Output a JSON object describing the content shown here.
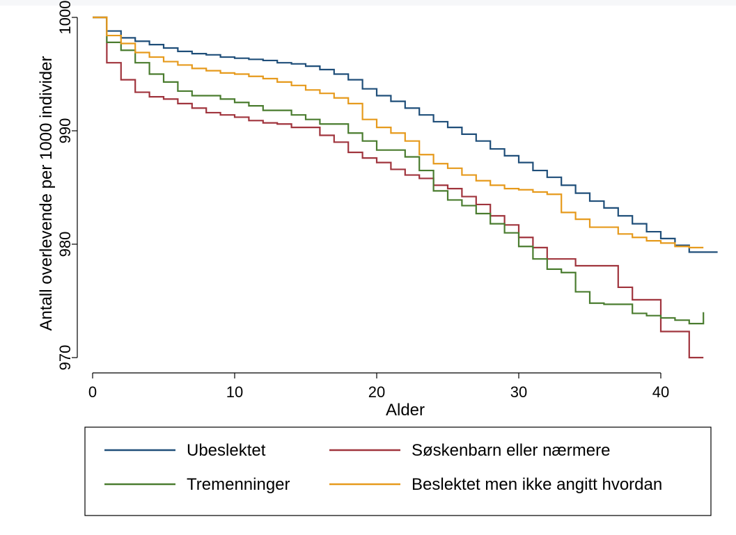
{
  "chart_data": {
    "type": "line",
    "title": "",
    "xlabel": "Alder",
    "ylabel": "Antall overlevende per 1000 individer",
    "xlim": [
      0,
      44
    ],
    "ylim": [
      970,
      1000
    ],
    "x_ticks": [
      0,
      10,
      20,
      30,
      40
    ],
    "y_ticks": [
      970,
      980,
      990,
      1000
    ],
    "grid": false,
    "legend_position": "bottom",
    "series": [
      {
        "name": "Ubeslektet",
        "color": "#1f4e79",
        "x": [
          0,
          1,
          2,
          3,
          4,
          5,
          6,
          7,
          8,
          9,
          10,
          11,
          12,
          13,
          14,
          15,
          16,
          17,
          18,
          19,
          20,
          21,
          22,
          23,
          24,
          25,
          26,
          27,
          28,
          29,
          30,
          31,
          32,
          33,
          34,
          35,
          36,
          37,
          38,
          39,
          40,
          41,
          42,
          43,
          44
        ],
        "values": [
          1000,
          998.8,
          998.2,
          997.9,
          997.6,
          997.3,
          997.0,
          996.8,
          996.7,
          996.5,
          996.4,
          996.3,
          996.2,
          996.0,
          995.9,
          995.7,
          995.4,
          995.0,
          994.5,
          993.7,
          993.1,
          992.6,
          992.0,
          991.4,
          990.8,
          990.3,
          989.7,
          989.1,
          988.4,
          987.8,
          987.2,
          986.5,
          985.9,
          985.2,
          984.5,
          983.8,
          983.2,
          982.5,
          981.8,
          981.1,
          980.5,
          979.9,
          979.3,
          979.3,
          979.3
        ]
      },
      {
        "name": "Søskenbarn eller nærmere",
        "color": "#a0343d",
        "x": [
          0,
          1,
          2,
          3,
          4,
          5,
          6,
          7,
          8,
          9,
          10,
          11,
          12,
          13,
          14,
          15,
          16,
          17,
          18,
          19,
          20,
          21,
          22,
          23,
          24,
          25,
          26,
          27,
          28,
          29,
          30,
          31,
          32,
          33,
          34,
          35,
          36,
          37,
          38,
          39,
          40,
          41,
          42,
          43
        ],
        "values": [
          1000,
          996.0,
          994.5,
          993.4,
          993.0,
          992.8,
          992.4,
          992.0,
          991.6,
          991.4,
          991.2,
          990.9,
          990.7,
          990.6,
          990.3,
          990.3,
          989.6,
          989.0,
          988.1,
          987.6,
          987.2,
          986.6,
          986.1,
          985.8,
          985.2,
          984.9,
          984.2,
          983.5,
          982.5,
          981.7,
          980.6,
          979.7,
          978.7,
          978.7,
          978.1,
          978.1,
          978.1,
          976.2,
          975.1,
          975.1,
          972.3,
          972.3,
          970.0,
          970.0
        ]
      },
      {
        "name": "Tremenninger",
        "color": "#4a7c2f",
        "x": [
          0,
          1,
          2,
          3,
          4,
          5,
          6,
          7,
          8,
          9,
          10,
          11,
          12,
          13,
          14,
          15,
          16,
          17,
          18,
          19,
          20,
          21,
          22,
          23,
          24,
          25,
          26,
          27,
          28,
          29,
          30,
          31,
          32,
          33,
          34,
          35,
          36,
          37,
          38,
          39,
          40,
          41,
          42,
          43
        ],
        "values": [
          1000,
          997.8,
          997.1,
          996.0,
          995.0,
          994.3,
          993.5,
          993.1,
          993.1,
          992.8,
          992.5,
          992.2,
          991.8,
          991.8,
          991.4,
          991.0,
          990.6,
          990.6,
          989.8,
          989.1,
          988.3,
          988.3,
          987.7,
          986.5,
          984.7,
          983.9,
          983.4,
          982.7,
          981.8,
          981.0,
          979.8,
          978.7,
          977.8,
          977.5,
          975.8,
          974.8,
          974.7,
          974.7,
          973.9,
          973.7,
          973.5,
          973.3,
          973.0,
          974.0
        ]
      },
      {
        "name": "Beslektet men ikke angitt hvordan",
        "color": "#e69a1c",
        "x": [
          0,
          1,
          2,
          3,
          4,
          5,
          6,
          7,
          8,
          9,
          10,
          11,
          12,
          13,
          14,
          15,
          16,
          17,
          18,
          19,
          20,
          21,
          22,
          23,
          24,
          25,
          26,
          27,
          28,
          29,
          30,
          31,
          32,
          33,
          34,
          35,
          36,
          37,
          38,
          39,
          40,
          41,
          42,
          43
        ],
        "values": [
          1000,
          998.4,
          997.7,
          996.9,
          996.5,
          996.1,
          995.8,
          995.5,
          995.3,
          995.1,
          995.0,
          994.8,
          994.6,
          994.3,
          994.0,
          993.6,
          993.3,
          992.9,
          992.4,
          991.0,
          990.3,
          989.8,
          989.1,
          987.9,
          987.1,
          986.7,
          986.1,
          985.6,
          985.2,
          984.9,
          984.8,
          984.6,
          984.4,
          982.8,
          982.2,
          981.5,
          981.5,
          980.9,
          980.6,
          980.3,
          980.1,
          979.8,
          979.7,
          979.7
        ]
      }
    ],
    "legend": {
      "rows": [
        [
          "Ubeslektet",
          "Søskenbarn eller nærmere"
        ],
        [
          "Tremenninger",
          "Beslektet men ikke angitt hvordan"
        ]
      ]
    }
  }
}
